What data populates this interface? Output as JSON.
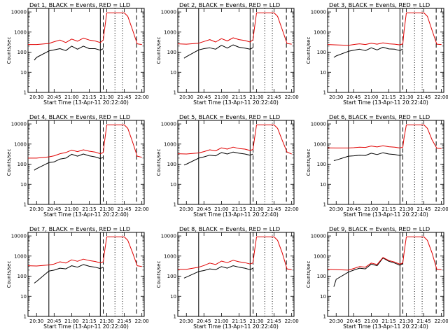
{
  "figure": {
    "panel_titles": [
      "Det 1, BLACK = Events, RED = LLD",
      "Det 2, BLACK = Events, RED = LLD",
      "Det 3, BLACK = Events, RED = LLD",
      "Det 4, BLACK = Events, RED = LLD",
      "Det 5, BLACK = Events, RED = LLD",
      "Det 6, BLACK = Events, RED = LLD",
      "Det 7, BLACK = Events, RED = LLD",
      "Det 8, BLACK = Events, RED = LLD",
      "Det 9, BLACK = Events, RED = LLD"
    ],
    "xlabel": "Start Time (13-Apr-11 20:22:40)",
    "ylabel": "Counts/sec",
    "xticks": [
      "20:30",
      "20:45",
      "21:00",
      "21:15",
      "21:30",
      "21:45",
      "22:00"
    ],
    "yticks": [
      "1",
      "10",
      "100",
      "1000",
      "10000"
    ]
  },
  "colors": {
    "events": "#000000",
    "lld": "#e00000"
  },
  "chart_data": {
    "type": "line",
    "layout": "3x3 grid of panels",
    "x_axis": {
      "unit": "clock time",
      "range": [
        "20:22:40",
        "22:02"
      ],
      "ticks": [
        "20:30",
        "20:45",
        "21:00",
        "21:15",
        "21:30",
        "21:45",
        "22:00"
      ]
    },
    "y_axis": {
      "scale": "log",
      "range": [
        1,
        15000
      ]
    },
    "grid": false,
    "legend": "none (encoded in panel titles: BLACK = Events, RED = LLD)",
    "vertical_markers": {
      "solid": [
        "20:40:30",
        "21:24:30"
      ],
      "dashed": [
        "21:27",
        "21:55:30"
      ],
      "dotted": [
        "21:37",
        "21:43:30"
      ]
    },
    "panels": [
      {
        "detector": 1,
        "series": [
          {
            "name": "Events",
            "color": "black",
            "x": [
              "20:28:00",
              "20:30:00",
              "20:40:30",
              "20:45:00",
              "20:50:00",
              "20:55:00",
              "21:00:00",
              "21:05:00",
              "21:10:00",
              "21:15:00",
              "21:20:00",
              "21:24:30",
              "21:27:00"
            ],
            "y": [
              40,
              55,
              115,
              130,
              150,
              120,
              200,
              140,
              200,
              150,
              150,
              125,
              150
            ]
          },
          {
            "name": "LLD",
            "color": "red",
            "x": [
              "20:22:40",
              "20:30:00",
              "20:40:30",
              "20:45:00",
              "20:50:00",
              "20:55:00",
              "21:00:00",
              "21:05:00",
              "21:10:00",
              "21:15:00",
              "21:20:00",
              "21:24:30",
              "21:27:00",
              "21:28:00",
              "21:30:00",
              "21:45:00",
              "21:48:00",
              "21:52:00",
              "21:56:00",
              "22:00:00"
            ],
            "y": [
              240,
              240,
              270,
              330,
              400,
              300,
              450,
              350,
              500,
              400,
              360,
              300,
              400,
              1200,
              9000,
              9000,
              6000,
              1300,
              260,
              240
            ]
          }
        ]
      },
      {
        "detector": 2,
        "series": [
          {
            "name": "Events",
            "color": "black",
            "x": [
              "20:28:00",
              "20:30:00",
              "20:40:30",
              "20:45:00",
              "20:50:00",
              "20:55:00",
              "21:00:00",
              "21:05:00",
              "21:10:00",
              "21:15:00",
              "21:20:00",
              "21:24:30",
              "21:27:00"
            ],
            "y": [
              50,
              60,
              130,
              150,
              165,
              140,
              220,
              160,
              230,
              175,
              160,
              140,
              170
            ]
          },
          {
            "name": "LLD",
            "color": "red",
            "x": [
              "20:22:40",
              "20:30:00",
              "20:40:30",
              "20:45:00",
              "20:50:00",
              "20:55:00",
              "21:00:00",
              "21:05:00",
              "21:10:00",
              "21:15:00",
              "21:20:00",
              "21:24:30",
              "21:27:00",
              "21:28:00",
              "21:30:00",
              "21:45:00",
              "21:48:00",
              "21:52:00",
              "21:56:00",
              "22:00:00"
            ],
            "y": [
              260,
              250,
              280,
              340,
              420,
              320,
              470,
              360,
              520,
              420,
              380,
              320,
              420,
              1300,
              9000,
              9000,
              6000,
              1300,
              270,
              250
            ]
          }
        ]
      },
      {
        "detector": 3,
        "series": [
          {
            "name": "Events",
            "color": "black",
            "x": [
              "20:28:00",
              "20:30:00",
              "20:40:30",
              "20:45:00",
              "20:50:00",
              "20:55:00",
              "21:00:00",
              "21:05:00",
              "21:10:00",
              "21:15:00",
              "21:20:00",
              "21:24:30",
              "21:27:00"
            ],
            "y": [
              55,
              65,
              110,
              125,
              140,
              120,
              165,
              130,
              175,
              145,
              140,
              120,
              145
            ]
          },
          {
            "name": "LLD",
            "color": "red",
            "x": [
              "20:22:40",
              "20:30:00",
              "20:40:30",
              "20:45:00",
              "20:50:00",
              "20:55:00",
              "21:00:00",
              "21:05:00",
              "21:10:00",
              "21:15:00",
              "21:20:00",
              "21:24:30",
              "21:27:00",
              "21:28:00",
              "21:30:00",
              "21:45:00",
              "21:48:00",
              "21:52:00",
              "21:56:00",
              "22:00:00"
            ],
            "y": [
              240,
              230,
              220,
              240,
              260,
              240,
              280,
              250,
              290,
              260,
              250,
              230,
              260,
              1100,
              9000,
              9000,
              6000,
              1200,
              250,
              240
            ]
          }
        ]
      },
      {
        "detector": 4,
        "series": [
          {
            "name": "Events",
            "color": "black",
            "x": [
              "20:28:00",
              "20:30:00",
              "20:40:30",
              "20:45:00",
              "20:50:00",
              "20:55:00",
              "21:00:00",
              "21:05:00",
              "21:10:00",
              "21:15:00",
              "21:20:00",
              "21:24:30",
              "21:27:00"
            ],
            "y": [
              50,
              60,
              120,
              130,
              180,
              200,
              310,
              250,
              320,
              260,
              230,
              190,
              220
            ]
          },
          {
            "name": "LLD",
            "color": "red",
            "x": [
              "20:22:40",
              "20:30:00",
              "20:40:30",
              "20:45:00",
              "20:50:00",
              "20:55:00",
              "21:00:00",
              "21:05:00",
              "21:10:00",
              "21:15:00",
              "21:20:00",
              "21:24:30",
              "21:27:00",
              "21:28:00",
              "21:30:00",
              "21:45:00",
              "21:48:00",
              "21:52:00",
              "21:56:00",
              "22:00:00"
            ],
            "y": [
              200,
              200,
              230,
              260,
              330,
              380,
              500,
              420,
              520,
              440,
              400,
              330,
              380,
              1200,
              9000,
              9000,
              6000,
              1300,
              250,
              220
            ]
          }
        ]
      },
      {
        "detector": 5,
        "series": [
          {
            "name": "Events",
            "color": "black",
            "x": [
              "20:28:00",
              "20:30:00",
              "20:40:30",
              "20:45:00",
              "20:50:00",
              "20:55:00",
              "21:00:00",
              "21:05:00",
              "21:10:00",
              "21:15:00",
              "21:20:00",
              "21:24:30",
              "21:27:00"
            ],
            "y": [
              90,
              100,
              200,
              230,
              280,
              260,
              380,
              320,
              400,
              350,
              320,
              280,
              320
            ]
          },
          {
            "name": "LLD",
            "color": "red",
            "x": [
              "20:22:40",
              "20:30:00",
              "20:40:30",
              "20:45:00",
              "20:50:00",
              "20:55:00",
              "21:00:00",
              "21:05:00",
              "21:10:00",
              "21:15:00",
              "21:20:00",
              "21:24:30",
              "21:27:00",
              "21:28:00",
              "21:30:00",
              "21:45:00",
              "21:48:00",
              "21:52:00",
              "21:56:00",
              "22:00:00"
            ],
            "y": [
              330,
              320,
              360,
              420,
              520,
              460,
              650,
              560,
              700,
              600,
              560,
              480,
              540,
              1500,
              9000,
              9000,
              6000,
              1500,
              400,
              320
            ]
          }
        ]
      },
      {
        "detector": 6,
        "series": [
          {
            "name": "Events",
            "color": "black",
            "x": [
              "20:28:00",
              "20:30:00",
              "20:40:30",
              "20:45:00",
              "20:50:00",
              "20:55:00",
              "21:00:00",
              "21:05:00",
              "21:10:00",
              "21:15:00",
              "21:20:00",
              "21:24:30",
              "21:27:00"
            ],
            "y": [
              150,
              160,
              250,
              260,
              280,
              270,
              350,
              300,
              370,
              320,
              300,
              270,
              300
            ]
          },
          {
            "name": "LLD",
            "color": "red",
            "x": [
              "20:22:40",
              "20:30:00",
              "20:40:30",
              "20:45:00",
              "20:50:00",
              "20:55:00",
              "21:00:00",
              "21:05:00",
              "21:10:00",
              "21:15:00",
              "21:20:00",
              "21:24:30",
              "21:27:00",
              "21:28:00",
              "21:30:00",
              "21:45:00",
              "21:48:00",
              "21:52:00",
              "21:56:00",
              "22:00:00"
            ],
            "y": [
              650,
              640,
              640,
              660,
              700,
              680,
              800,
              720,
              820,
              740,
              700,
              640,
              700,
              2000,
              9000,
              9000,
              6000,
              1600,
              620,
              600
            ]
          }
        ]
      },
      {
        "detector": 7,
        "series": [
          {
            "name": "Events",
            "color": "black",
            "x": [
              "20:28:00",
              "20:30:00",
              "20:40:30",
              "20:45:00",
              "20:50:00",
              "20:55:00",
              "21:00:00",
              "21:05:00",
              "21:10:00",
              "21:15:00",
              "21:20:00",
              "21:24:30",
              "21:27:00"
            ],
            "y": [
              45,
              55,
              180,
              200,
              250,
              230,
              330,
              280,
              380,
              310,
              280,
              240,
              280
            ]
          },
          {
            "name": "LLD",
            "color": "red",
            "x": [
              "20:22:40",
              "20:30:00",
              "20:40:30",
              "20:45:00",
              "20:50:00",
              "20:55:00",
              "21:00:00",
              "21:05:00",
              "21:10:00",
              "21:15:00",
              "21:20:00",
              "21:24:30",
              "21:27:00",
              "21:28:00",
              "21:30:00",
              "21:45:00",
              "21:48:00",
              "21:52:00",
              "21:56:00",
              "22:00:00"
            ],
            "y": [
              330,
              320,
              360,
              400,
              520,
              450,
              650,
              550,
              700,
              600,
              540,
              460,
              520,
              1500,
              9000,
              9000,
              6000,
              1500,
              330,
              300
            ]
          }
        ]
      },
      {
        "detector": 8,
        "series": [
          {
            "name": "Events",
            "color": "black",
            "x": [
              "20:28:00",
              "20:30:00",
              "20:40:30",
              "20:45:00",
              "20:50:00",
              "20:55:00",
              "21:00:00",
              "21:05:00",
              "21:10:00",
              "21:15:00",
              "21:20:00",
              "21:24:30",
              "21:27:00"
            ],
            "y": [
              80,
              90,
              170,
              190,
              230,
              210,
              300,
              250,
              330,
              280,
              250,
              210,
              250
            ]
          },
          {
            "name": "LLD",
            "color": "red",
            "x": [
              "20:22:40",
              "20:30:00",
              "20:40:30",
              "20:45:00",
              "20:50:00",
              "20:55:00",
              "21:00:00",
              "21:05:00",
              "21:10:00",
              "21:15:00",
              "21:20:00",
              "21:24:30",
              "21:27:00",
              "21:28:00",
              "21:30:00",
              "21:45:00",
              "21:48:00",
              "21:52:00",
              "21:56:00",
              "22:00:00"
            ],
            "y": [
              220,
              220,
              280,
              340,
              450,
              380,
              560,
              470,
              620,
              520,
              470,
              400,
              460,
              1400,
              9000,
              9000,
              6000,
              1400,
              230,
              210
            ]
          }
        ]
      },
      {
        "detector": 9,
        "series": [
          {
            "name": "Events",
            "color": "black",
            "x": [
              "20:28:00",
              "20:30:00",
              "20:40:30",
              "20:45:00",
              "20:50:00",
              "20:55:00",
              "21:00:00",
              "21:05:00",
              "21:10:00",
              "21:15:00",
              "21:20:00",
              "21:24:30",
              "21:27:00"
            ],
            "y": [
              30,
              70,
              160,
              200,
              250,
              230,
              400,
              330,
              800,
              550,
              450,
              350,
              420
            ]
          },
          {
            "name": "LLD",
            "color": "red",
            "x": [
              "20:22:40",
              "20:30:00",
              "20:40:30",
              "20:45:00",
              "20:50:00",
              "20:55:00",
              "21:00:00",
              "21:05:00",
              "21:10:00",
              "21:15:00",
              "21:20:00",
              "21:24:30",
              "21:27:00",
              "21:28:00",
              "21:30:00",
              "21:45:00",
              "21:48:00",
              "21:52:00",
              "21:56:00",
              "22:00:00"
            ],
            "y": [
              220,
              210,
              200,
              240,
              300,
              280,
              450,
              380,
              850,
              600,
              500,
              390,
              460,
              1400,
              9000,
              9000,
              6000,
              1400,
              220,
              210
            ]
          }
        ]
      }
    ]
  }
}
